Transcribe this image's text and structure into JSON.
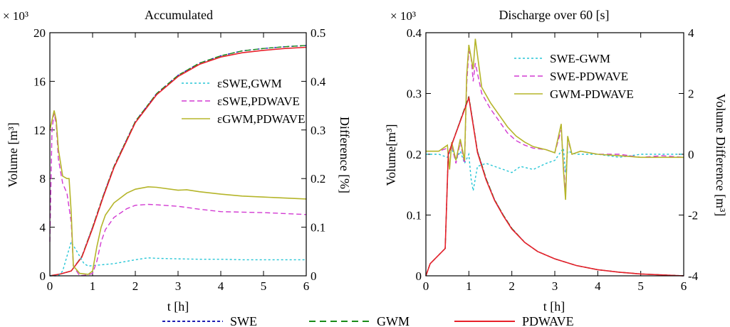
{
  "chart_data": [
    {
      "type": "line",
      "title": "Accumulated",
      "xlabel": "t [h]",
      "ylabel": "Volume [m³]",
      "ylabel_right": "Difference [%]",
      "y_multiplier": "× 10³",
      "xlim": [
        0,
        6
      ],
      "ylim": [
        0,
        20
      ],
      "ylim_right": [
        0,
        0.5
      ],
      "x_ticks": [
        "0",
        "1",
        "2",
        "3",
        "4",
        "5",
        "6"
      ],
      "y_ticks": [
        "0",
        "4",
        "8",
        "12",
        "16",
        "20"
      ],
      "y_ticks_right": [
        "0",
        "0.1",
        "0.2",
        "0.3",
        "0.4",
        "0.5"
      ],
      "legend_position": "right-center",
      "series": [
        {
          "name": "SWE",
          "axis": "left",
          "color": "#1f1fb4",
          "dash": "dotted",
          "x": [
            0,
            0.25,
            0.5,
            0.75,
            1.0,
            1.25,
            1.5,
            2.0,
            2.5,
            3.0,
            3.5,
            4.0,
            4.5,
            5.0,
            5.5,
            6.0
          ],
          "y": [
            0,
            0.15,
            0.4,
            1.6,
            4.0,
            6.6,
            9.0,
            12.7,
            15.0,
            16.5,
            17.5,
            18.1,
            18.5,
            18.7,
            18.85,
            18.95
          ]
        },
        {
          "name": "GWM",
          "axis": "left",
          "color": "#1a8c1a",
          "dash": "dashed",
          "x": [
            0,
            0.25,
            0.5,
            0.75,
            1.0,
            1.25,
            1.5,
            2.0,
            2.5,
            3.0,
            3.5,
            4.0,
            4.5,
            5.0,
            5.5,
            6.0
          ],
          "y": [
            0,
            0.15,
            0.4,
            1.6,
            4.0,
            6.6,
            9.0,
            12.7,
            15.0,
            16.5,
            17.5,
            18.1,
            18.5,
            18.7,
            18.85,
            18.95
          ]
        },
        {
          "name": "PDWAVE",
          "axis": "left",
          "color": "#e8202a",
          "dash": "solid",
          "x": [
            0,
            0.25,
            0.5,
            0.75,
            1.0,
            1.25,
            1.5,
            2.0,
            2.5,
            3.0,
            3.5,
            4.0,
            4.5,
            5.0,
            5.5,
            6.0
          ],
          "y": [
            0,
            0.15,
            0.4,
            1.55,
            3.9,
            6.5,
            8.9,
            12.6,
            14.9,
            16.4,
            17.4,
            18.0,
            18.35,
            18.55,
            18.7,
            18.8
          ]
        },
        {
          "name": "εSWE,GWM",
          "axis": "right",
          "color": "#26c6d6",
          "dash": "dotted",
          "x": [
            0,
            0.1,
            0.2,
            0.3,
            0.4,
            0.5,
            0.6,
            0.7,
            0.8,
            0.9,
            1.0,
            1.5,
            2.0,
            2.3,
            2.5,
            3.0,
            3.5,
            4.0,
            4.5,
            5.0,
            5.5,
            6.0
          ],
          "y": [
            0.0,
            0.0,
            0.0,
            0.01,
            0.04,
            0.07,
            0.055,
            0.04,
            0.025,
            0.02,
            0.021,
            0.025,
            0.033,
            0.037,
            0.036,
            0.035,
            0.034,
            0.034,
            0.033,
            0.033,
            0.033,
            0.033
          ]
        },
        {
          "name": "εSWE,PDWAVE",
          "axis": "right",
          "color": "#d23ad2",
          "dash": "dashed",
          "x": [
            0,
            0.05,
            0.1,
            0.15,
            0.2,
            0.3,
            0.4,
            0.5,
            0.55,
            0.7,
            0.9,
            1.0,
            1.1,
            1.2,
            1.3,
            1.5,
            1.8,
            2.0,
            2.3,
            2.5,
            3.0,
            3.5,
            4.0,
            4.5,
            5.0,
            5.5,
            6.0
          ],
          "y": [
            0.07,
            0.3,
            0.335,
            0.31,
            0.24,
            0.19,
            0.17,
            0.11,
            0.02,
            0.0,
            0.002,
            0.005,
            0.03,
            0.07,
            0.095,
            0.12,
            0.138,
            0.145,
            0.147,
            0.146,
            0.143,
            0.137,
            0.132,
            0.131,
            0.13,
            0.128,
            0.126
          ]
        },
        {
          "name": "εGWM,PDWAVE",
          "axis": "right",
          "color": "#b5b52a",
          "dash": "solid",
          "x": [
            0,
            0.05,
            0.1,
            0.15,
            0.2,
            0.3,
            0.4,
            0.45,
            0.5,
            0.55,
            0.7,
            0.9,
            1.0,
            1.1,
            1.2,
            1.3,
            1.5,
            1.8,
            2.0,
            2.3,
            2.5,
            3.0,
            3.2,
            3.5,
            4.0,
            4.5,
            5.0,
            5.5,
            6.0
          ],
          "y": [
            0.3,
            0.32,
            0.34,
            0.32,
            0.26,
            0.205,
            0.2,
            0.2,
            0.13,
            0.02,
            0.005,
            0.003,
            0.01,
            0.06,
            0.1,
            0.125,
            0.15,
            0.17,
            0.178,
            0.183,
            0.182,
            0.176,
            0.177,
            0.173,
            0.168,
            0.164,
            0.162,
            0.16,
            0.158
          ]
        }
      ]
    },
    {
      "type": "line",
      "title": "Discharge over 60 [s]",
      "xlabel": "t [h]",
      "ylabel": "Volume[m³]",
      "ylabel_right": "Volume Difference [m³]",
      "y_multiplier": "× 10³",
      "xlim": [
        0,
        6
      ],
      "ylim": [
        0,
        0.4
      ],
      "ylim_right": [
        -4,
        4
      ],
      "x_ticks": [
        "0",
        "1",
        "2",
        "3",
        "4",
        "5",
        "6"
      ],
      "y_ticks": [
        "0",
        "0.1",
        "0.2",
        "0.3",
        "0.4"
      ],
      "y_ticks_right": [
        "-4",
        "-2",
        "0",
        "2",
        "4"
      ],
      "legend_position": "top-right",
      "series": [
        {
          "name": "SWE-GWM",
          "axis": "right",
          "color": "#26c6d6",
          "dash": "dotted",
          "x": [
            0,
            0.3,
            0.5,
            0.6,
            0.7,
            0.8,
            0.9,
            1.0,
            1.05,
            1.1,
            1.2,
            1.4,
            1.6,
            1.8,
            2.0,
            2.2,
            2.5,
            2.8,
            3.0,
            3.2,
            3.25,
            3.3,
            3.5,
            4.0,
            4.5,
            5.0,
            5.5,
            6.0
          ],
          "y": [
            0,
            0,
            -0.1,
            0.2,
            -0.2,
            0.1,
            -0.3,
            0.0,
            -0.8,
            -1.2,
            -0.4,
            -0.3,
            -0.4,
            -0.5,
            -0.6,
            -0.4,
            -0.5,
            -0.3,
            -0.2,
            0.2,
            -0.6,
            0.1,
            0.0,
            0.0,
            -0.1,
            0.0,
            0.0,
            0.0
          ]
        },
        {
          "name": "SWE-PDWAVE",
          "axis": "right",
          "color": "#d23ad2",
          "dash": "dashed",
          "x": [
            0,
            0.3,
            0.5,
            0.55,
            0.6,
            0.7,
            0.8,
            0.9,
            0.95,
            1.0,
            1.05,
            1.1,
            1.15,
            1.3,
            1.5,
            1.7,
            1.9,
            2.1,
            2.3,
            2.5,
            2.8,
            3.0,
            3.15,
            3.2,
            3.25,
            3.3,
            3.4,
            3.6,
            4.0,
            4.5,
            5.0,
            5.5,
            6.0
          ],
          "y": [
            0.1,
            0.1,
            0.2,
            -0.4,
            0.3,
            -0.3,
            0.4,
            -0.3,
            2.3,
            3.4,
            3.2,
            2.4,
            3.0,
            2.0,
            1.5,
            1.1,
            0.7,
            0.45,
            0.3,
            0.2,
            0.15,
            0.05,
            0.8,
            -0.3,
            -1.3,
            0.5,
            0.0,
            0.1,
            0.0,
            0.0,
            -0.1,
            -0.05,
            -0.1
          ]
        },
        {
          "name": "GWM-PDWAVE",
          "axis": "right",
          "color": "#b5b52a",
          "dash": "solid",
          "x": [
            0,
            0.3,
            0.5,
            0.55,
            0.6,
            0.7,
            0.8,
            0.9,
            0.95,
            1.0,
            1.05,
            1.1,
            1.15,
            1.3,
            1.5,
            1.7,
            1.9,
            2.1,
            2.3,
            2.5,
            2.8,
            3.0,
            3.15,
            3.2,
            3.25,
            3.3,
            3.4,
            3.6,
            4.0,
            4.5,
            5.0,
            5.5,
            6.0
          ],
          "y": [
            0.1,
            0.1,
            0.3,
            -0.5,
            0.4,
            -0.2,
            0.5,
            -0.2,
            2.6,
            3.6,
            3.2,
            2.8,
            3.8,
            2.2,
            1.7,
            1.3,
            0.9,
            0.6,
            0.4,
            0.25,
            0.15,
            0.05,
            1.0,
            -0.5,
            -1.5,
            0.6,
            0.0,
            0.1,
            0.0,
            -0.05,
            -0.1,
            -0.1,
            -0.1
          ]
        },
        {
          "name": "SWE",
          "axis": "left",
          "color": "#1f1fb4",
          "dash": "dotted",
          "x": [
            0,
            0.1,
            0.45,
            0.52,
            1.0,
            1.1,
            1.2,
            1.4,
            1.6,
            1.8,
            2.0,
            2.3,
            2.6,
            3.0,
            3.5,
            4.0,
            4.5,
            5.0,
            6.0
          ],
          "y": [
            0,
            0.02,
            0.045,
            0.2,
            0.295,
            0.25,
            0.205,
            0.16,
            0.125,
            0.1,
            0.078,
            0.055,
            0.04,
            0.028,
            0.017,
            0.01,
            0.006,
            0.003,
            0.0
          ]
        },
        {
          "name": "GWM",
          "axis": "left",
          "color": "#1a8c1a",
          "dash": "dashed",
          "x": [
            0,
            0.1,
            0.45,
            0.52,
            1.0,
            1.1,
            1.2,
            1.4,
            1.6,
            1.8,
            2.0,
            2.3,
            2.6,
            3.0,
            3.5,
            4.0,
            4.5,
            5.0,
            6.0
          ],
          "y": [
            0,
            0.02,
            0.045,
            0.2,
            0.295,
            0.25,
            0.205,
            0.16,
            0.125,
            0.1,
            0.078,
            0.055,
            0.04,
            0.028,
            0.017,
            0.01,
            0.006,
            0.003,
            0.0
          ]
        },
        {
          "name": "PDWAVE",
          "axis": "left",
          "color": "#e8202a",
          "dash": "solid",
          "x": [
            0,
            0.1,
            0.45,
            0.52,
            1.0,
            1.1,
            1.2,
            1.4,
            1.6,
            1.8,
            2.0,
            2.3,
            2.6,
            3.0,
            3.5,
            4.0,
            4.5,
            5.0,
            6.0
          ],
          "y": [
            0,
            0.02,
            0.045,
            0.2,
            0.293,
            0.248,
            0.203,
            0.158,
            0.124,
            0.099,
            0.077,
            0.055,
            0.04,
            0.028,
            0.017,
            0.01,
            0.006,
            0.003,
            0.0
          ]
        }
      ]
    }
  ],
  "bottom_legend": [
    {
      "label": "SWE",
      "color": "#1f1fb4",
      "dash": "dotted"
    },
    {
      "label": "GWM",
      "color": "#1a8c1a",
      "dash": "dashed"
    },
    {
      "label": "PDWAVE",
      "color": "#e8202a",
      "dash": "solid"
    }
  ]
}
